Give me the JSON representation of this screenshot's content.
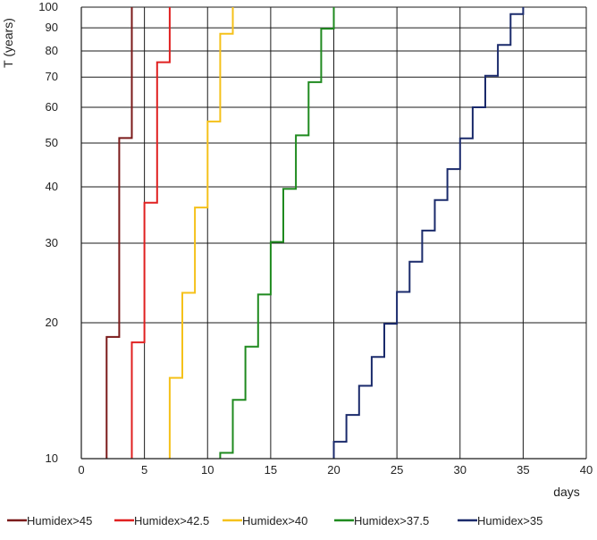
{
  "chart_data": {
    "type": "line",
    "title": "",
    "xlabel": "days",
    "ylabel": "T (years)",
    "xlim": [
      0,
      40
    ],
    "ylim": [
      10,
      100
    ],
    "yscale": "log",
    "grid": true,
    "legend_position": "bottom",
    "x_ticks": [
      0,
      5,
      10,
      15,
      20,
      25,
      30,
      35,
      40
    ],
    "y_ticks": [
      10,
      20,
      30,
      40,
      50,
      60,
      70,
      80,
      90,
      100
    ],
    "series": [
      {
        "name": "Humidex>45",
        "color": "#7b1a1a",
        "steps": [
          {
            "x": 2,
            "y": 10
          },
          {
            "x": 2,
            "y": 18.6
          },
          {
            "x": 3,
            "y": 18.6
          },
          {
            "x": 3,
            "y": 51.3
          },
          {
            "x": 4,
            "y": 51.3
          },
          {
            "x": 4,
            "y": 100
          }
        ]
      },
      {
        "name": "Humidex>42.5",
        "color": "#e02020",
        "steps": [
          {
            "x": 4,
            "y": 10
          },
          {
            "x": 4,
            "y": 18.1
          },
          {
            "x": 5,
            "y": 18.1
          },
          {
            "x": 5,
            "y": 36.9
          },
          {
            "x": 6,
            "y": 36.9
          },
          {
            "x": 6,
            "y": 75.5
          },
          {
            "x": 7,
            "y": 75.5
          },
          {
            "x": 7,
            "y": 100
          }
        ]
      },
      {
        "name": "Humidex>40",
        "color": "#f5c11a",
        "steps": [
          {
            "x": 7,
            "y": 10
          },
          {
            "x": 7,
            "y": 15.1
          },
          {
            "x": 8,
            "y": 15.1
          },
          {
            "x": 8,
            "y": 23.3
          },
          {
            "x": 9,
            "y": 23.3
          },
          {
            "x": 9,
            "y": 36
          },
          {
            "x": 10,
            "y": 36
          },
          {
            "x": 10,
            "y": 55.8
          },
          {
            "x": 11,
            "y": 55.8
          },
          {
            "x": 11,
            "y": 87.3
          },
          {
            "x": 12,
            "y": 87.3
          },
          {
            "x": 12,
            "y": 100
          }
        ]
      },
      {
        "name": "Humidex>37.5",
        "color": "#1f8a1f",
        "steps": [
          {
            "x": 11,
            "y": 10
          },
          {
            "x": 11,
            "y": 10.3
          },
          {
            "x": 12,
            "y": 10.3
          },
          {
            "x": 12,
            "y": 13.5
          },
          {
            "x": 13,
            "y": 13.5
          },
          {
            "x": 13,
            "y": 17.7
          },
          {
            "x": 14,
            "y": 17.7
          },
          {
            "x": 14,
            "y": 23.1
          },
          {
            "x": 15,
            "y": 23.1
          },
          {
            "x": 15,
            "y": 30.2
          },
          {
            "x": 16,
            "y": 30.2
          },
          {
            "x": 16,
            "y": 39.6
          },
          {
            "x": 17,
            "y": 39.6
          },
          {
            "x": 17,
            "y": 52
          },
          {
            "x": 18,
            "y": 52
          },
          {
            "x": 18,
            "y": 68.2
          },
          {
            "x": 19,
            "y": 68.2
          },
          {
            "x": 19,
            "y": 89.6
          },
          {
            "x": 20,
            "y": 89.6
          },
          {
            "x": 20,
            "y": 100
          }
        ]
      },
      {
        "name": "Humidex>35",
        "color": "#1a2a6b",
        "steps": [
          {
            "x": 20,
            "y": 10
          },
          {
            "x": 20,
            "y": 10.9
          },
          {
            "x": 21,
            "y": 10.9
          },
          {
            "x": 21,
            "y": 12.5
          },
          {
            "x": 22,
            "y": 12.5
          },
          {
            "x": 22,
            "y": 14.5
          },
          {
            "x": 23,
            "y": 14.5
          },
          {
            "x": 23,
            "y": 16.8
          },
          {
            "x": 24,
            "y": 16.8
          },
          {
            "x": 24,
            "y": 19.9
          },
          {
            "x": 25,
            "y": 19.9
          },
          {
            "x": 25,
            "y": 23.4
          },
          {
            "x": 26,
            "y": 23.4
          },
          {
            "x": 26,
            "y": 27.3
          },
          {
            "x": 27,
            "y": 27.3
          },
          {
            "x": 27,
            "y": 32
          },
          {
            "x": 28,
            "y": 32
          },
          {
            "x": 28,
            "y": 37.4
          },
          {
            "x": 29,
            "y": 37.4
          },
          {
            "x": 29,
            "y": 43.8
          },
          {
            "x": 30,
            "y": 43.8
          },
          {
            "x": 30,
            "y": 51.2
          },
          {
            "x": 31,
            "y": 51.2
          },
          {
            "x": 31,
            "y": 60
          },
          {
            "x": 32,
            "y": 60
          },
          {
            "x": 32,
            "y": 70.5
          },
          {
            "x": 33,
            "y": 70.5
          },
          {
            "x": 33,
            "y": 82.5
          },
          {
            "x": 34,
            "y": 82.5
          },
          {
            "x": 34,
            "y": 96.5
          },
          {
            "x": 35,
            "y": 96.5
          },
          {
            "x": 35,
            "y": 100
          }
        ]
      }
    ]
  }
}
